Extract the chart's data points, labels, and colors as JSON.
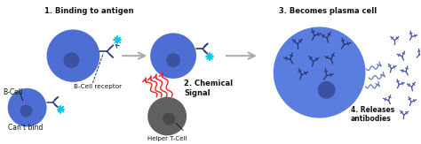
{
  "bg_color": "#ffffff",
  "labels": {
    "step1": "1. Binding to antigen",
    "step2": "2. Chemical\nSignal",
    "step3": "3. Becomes plasma cell",
    "step4": "4. Releases\nantibodies",
    "bcell": "B-Cell",
    "cantbind": "Can't bind",
    "receptor": "B-Cell receptor",
    "helper": "Helper T-Cell"
  },
  "cell_blue": "#4d6fd4",
  "cell_blue_plasma": "#5a7ee0",
  "cell_dark": "#606060",
  "cell_nucleus_blue": "#3a52a0",
  "cell_nucleus_dark": "#484848",
  "cyan_star": "#00c8e8",
  "arrow_gray": "#aaaaaa",
  "antibody_dark": "#2a3a7a",
  "antibody_release": "#4455aa",
  "wave_blue": "#6677cc",
  "signal_red": "#ee2222",
  "text_color": "#111111"
}
